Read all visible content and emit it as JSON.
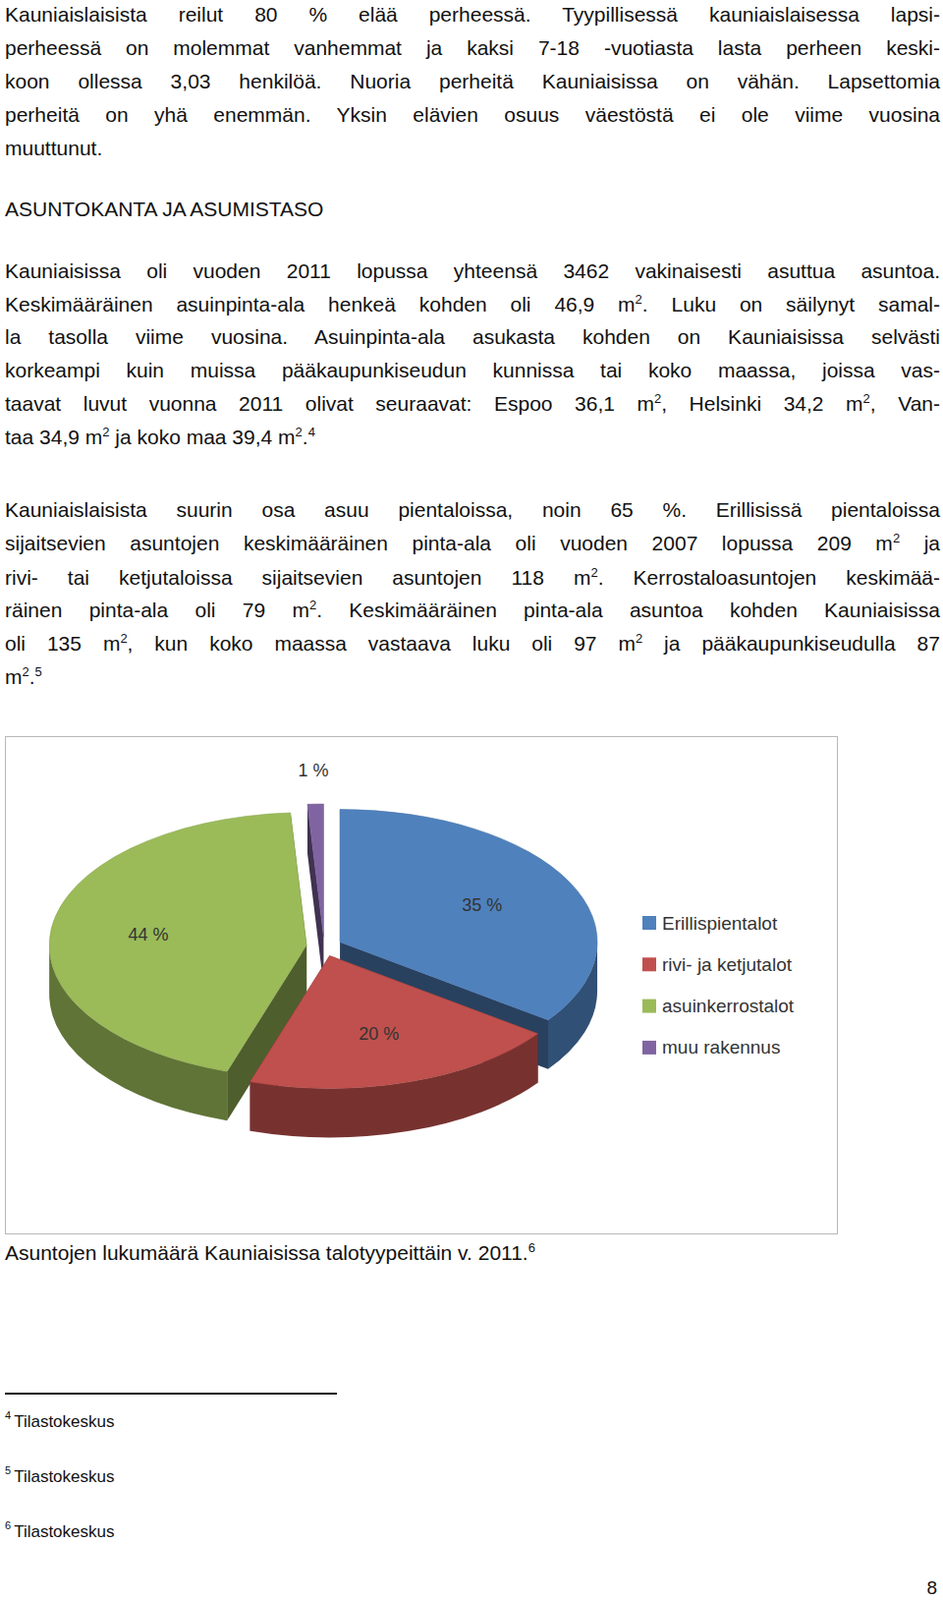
{
  "paragraph_1": [
    [
      "Kauniaislaisista reilut 80 % elää perheessä. Tyypillisessä kauniaislaisessa lapsi-"
    ],
    [
      "perheessä on molemmat vanhemmat ja kaksi 7-18 -vuotiasta lasta perheen keski-"
    ],
    [
      "koon ollessa 3,03 henkilöä. Nuoria perheitä Kauniaisissa on vähän. Lapsettomia"
    ],
    [
      "perheitä on yhä enemmän. Yksin elävien osuus väestöstä ei ole viime vuosina"
    ],
    [
      "muuttunut."
    ]
  ],
  "heading": "ASUNTOKANTA JA ASUMISTASO",
  "paragraph_2": [
    [
      "Kauniaisissa oli vuoden 2011 lopussa yhteensä 3462 vakinaisesti asuttua asuntoa."
    ],
    [
      "Keskimääräinen asuinpinta-ala henkeä kohden oli 46,9 m",
      {
        "sup": "2"
      },
      ". Luku on säilynyt samal-"
    ],
    [
      "la tasolla viime vuosina. Asuinpinta-ala asukasta kohden on Kauniaisissa selvästi"
    ],
    [
      "korkeampi kuin muissa pääkaupunkiseudun kunnissa tai koko maassa, joissa vas-"
    ],
    [
      "taavat luvut vuonna 2011 olivat seuraavat: Espoo 36,1 m",
      {
        "sup": "2"
      },
      ", Helsinki 34,2 m",
      {
        "sup": "2"
      },
      ", Van-"
    ],
    [
      "taa 34,9 m",
      {
        "sup": "2"
      },
      " ja koko maa 39,4 m",
      {
        "sup": "2"
      },
      ".",
      {
        "sup": "4"
      }
    ]
  ],
  "paragraph_3": [
    [
      "Kauniaislaisista suurin osa asuu pientaloissa, noin 65 %. Erillisissä pientaloissa"
    ],
    [
      "sijaitsevien asuntojen keskimääräinen pinta-ala oli vuoden 2007 lopussa 209 m",
      {
        "sup": "2"
      },
      " ja"
    ],
    [
      "rivi- tai ketjutaloissa sijaitsevien asuntojen 118 m",
      {
        "sup": "2"
      },
      ". Kerrostaloasuntojen keskimää-"
    ],
    [
      "räinen pinta-ala oli 79 m",
      {
        "sup": "2"
      },
      ". Keskimääräinen pinta-ala asuntoa kohden Kauniaisissa"
    ],
    [
      "oli 135 m",
      {
        "sup": "2"
      },
      ", kun koko maassa vastaava luku oli 97 m",
      {
        "sup": "2"
      },
      " ja pääkaupunkiseudulla 87"
    ],
    [
      "m",
      {
        "sup": "2"
      },
      ".",
      {
        "sup": "5"
      }
    ]
  ],
  "chart_data": {
    "type": "pie",
    "categories": [
      "Erillispientalot",
      "rivi- ja ketjutalot",
      "asuinkerrostalot",
      "muu rakennus"
    ],
    "values": [
      35,
      20,
      44,
      1
    ],
    "value_labels": [
      "35 %",
      "20 %",
      "44 %",
      "1 %"
    ],
    "colors": [
      "#4f81bd",
      "#c0504d",
      "#9bbb59",
      "#8064a2"
    ],
    "data_labels": true,
    "legend": "right"
  },
  "caption": {
    "text": "Asuntojen lukumäärä Kauniaisissa talotyypeittäin v. 2011.",
    "sup": "6"
  },
  "footnotes": [
    {
      "mark": "4",
      "text": "Tilastokeskus"
    },
    {
      "mark": "5",
      "text": "Tilastokeskus"
    },
    {
      "mark": "6",
      "text": "Tilastokeskus"
    }
  ],
  "page_number": "8"
}
